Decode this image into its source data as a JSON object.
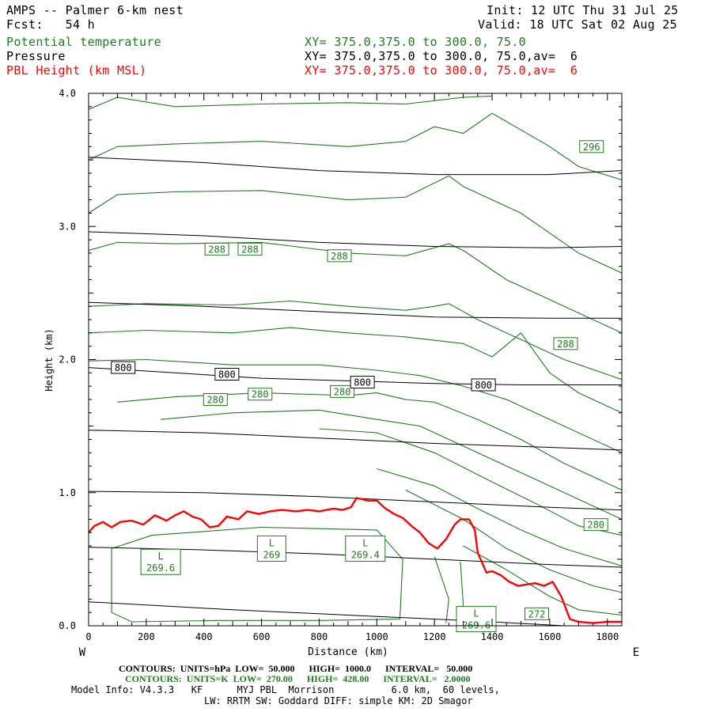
{
  "header": {
    "model": "AMPS -- Palmer 6-km nest",
    "fcst": "Fcst:   54 h",
    "init": "Init: 12 UTC Thu 31 Jul 25",
    "valid": "Valid: 18 UTC Sat 02 Aug 25",
    "var1": "Potential temperature",
    "var2": "Pressure",
    "var3": "PBL Height (km MSL)",
    "xy1": "XY= 375.0,375.0 to 300.0, 75.0",
    "xy2": "XY= 375.0,375.0 to 300.0, 75.0,av=  6",
    "xy3": "XY= 375.0,375.0 to 300.0, 75.0,av=  6"
  },
  "footer": {
    "line1": "CONTOURS:  UNITS=hPa  LOW=  50.000      HIGH=  1000.0      INTERVAL=   50.000",
    "line2": "CONTOURS:  UNITS=K  LOW=  270.00      HIGH=  428.00      INTERVAL=   2.0000",
    "line3": "Model Info: V4.3.3   KF      MYJ PBL  Morrison          6.0 km,  60 levels,",
    "line4": "LW: RRTM SW: Goddard DIFF: simple KM: 2D Smagor",
    "west": "W",
    "east": "E"
  },
  "colors": {
    "theta": "#1e7b1e",
    "pressure": "#000000",
    "pbl": "#ff0000"
  },
  "chart_data": {
    "type": "line",
    "xlabel": "Distance (km)",
    "ylabel": "Height (km)",
    "xlim": [
      0,
      1850
    ],
    "ylim": [
      0,
      4
    ],
    "x_ticks": [
      0,
      200,
      400,
      600,
      800,
      1000,
      1200,
      1400,
      1600,
      1800
    ],
    "y_ticks": [
      0.0,
      1.0,
      2.0,
      3.0,
      4.0
    ],
    "pressure_contours_hPa": [
      {
        "label": "800",
        "points": [
          [
            0,
            1.94
          ],
          [
            300,
            1.9
          ],
          [
            600,
            1.86
          ],
          [
            900,
            1.84
          ],
          [
            1200,
            1.82
          ],
          [
            1500,
            1.81
          ],
          [
            1850,
            1.81
          ]
        ]
      },
      {
        "points": [
          [
            0,
            0.18
          ],
          [
            500,
            0.12
          ],
          [
            1000,
            0.07
          ],
          [
            1400,
            0.03
          ],
          [
            1650,
            0.0
          ]
        ]
      },
      {
        "points": [
          [
            0,
            0.59
          ],
          [
            400,
            0.57
          ],
          [
            800,
            0.54
          ],
          [
            1200,
            0.5
          ],
          [
            1600,
            0.46
          ],
          [
            1850,
            0.44
          ]
        ]
      },
      {
        "points": [
          [
            0,
            1.01
          ],
          [
            400,
            1.0
          ],
          [
            800,
            0.97
          ],
          [
            1200,
            0.93
          ],
          [
            1600,
            0.89
          ],
          [
            1850,
            0.87
          ]
        ]
      },
      {
        "points": [
          [
            0,
            1.47
          ],
          [
            400,
            1.45
          ],
          [
            800,
            1.41
          ],
          [
            1200,
            1.37
          ],
          [
            1600,
            1.34
          ],
          [
            1850,
            1.32
          ]
        ]
      },
      {
        "points": [
          [
            0,
            2.43
          ],
          [
            400,
            2.4
          ],
          [
            800,
            2.36
          ],
          [
            1200,
            2.32
          ],
          [
            1600,
            2.31
          ],
          [
            1850,
            2.31
          ]
        ]
      },
      {
        "points": [
          [
            0,
            2.96
          ],
          [
            400,
            2.93
          ],
          [
            800,
            2.88
          ],
          [
            1200,
            2.85
          ],
          [
            1600,
            2.84
          ],
          [
            1850,
            2.85
          ]
        ]
      },
      {
        "points": [
          [
            0,
            3.52
          ],
          [
            400,
            3.48
          ],
          [
            800,
            3.42
          ],
          [
            1200,
            3.39
          ],
          [
            1600,
            3.39
          ],
          [
            1850,
            3.42
          ]
        ]
      }
    ],
    "pressure_labels": [
      {
        "text": "800",
        "x": 120,
        "y": 1.94
      },
      {
        "text": "800",
        "x": 480,
        "y": 1.89
      },
      {
        "text": "800",
        "x": 950,
        "y": 1.83
      },
      {
        "text": "800",
        "x": 1370,
        "y": 1.81
      }
    ],
    "theta_contours_K": [
      {
        "points": [
          [
            0,
            3.88
          ],
          [
            100,
            3.97
          ],
          [
            300,
            3.9
          ],
          [
            600,
            3.92
          ],
          [
            900,
            3.93
          ],
          [
            1100,
            3.92
          ],
          [
            1300,
            3.97
          ],
          [
            1400,
            3.98
          ]
        ]
      },
      {
        "points": [
          [
            0,
            3.5
          ],
          [
            100,
            3.6
          ],
          [
            300,
            3.62
          ],
          [
            600,
            3.64
          ],
          [
            900,
            3.6
          ],
          [
            1100,
            3.64
          ],
          [
            1200,
            3.75
          ],
          [
            1300,
            3.7
          ],
          [
            1400,
            3.85
          ],
          [
            1600,
            3.6
          ],
          [
            1700,
            3.45
          ],
          [
            1850,
            3.35
          ]
        ]
      },
      {
        "points": [
          [
            0,
            3.1
          ],
          [
            100,
            3.24
          ],
          [
            300,
            3.26
          ],
          [
            600,
            3.27
          ],
          [
            900,
            3.2
          ],
          [
            1100,
            3.22
          ],
          [
            1250,
            3.38
          ],
          [
            1300,
            3.3
          ],
          [
            1400,
            3.2
          ],
          [
            1500,
            3.1
          ],
          [
            1600,
            2.95
          ],
          [
            1700,
            2.8
          ],
          [
            1850,
            2.65
          ]
        ]
      },
      {
        "label": "288",
        "points": [
          [
            0,
            2.82
          ],
          [
            100,
            2.88
          ],
          [
            300,
            2.87
          ],
          [
            600,
            2.88
          ],
          [
            900,
            2.8
          ],
          [
            1100,
            2.78
          ],
          [
            1250,
            2.87
          ],
          [
            1300,
            2.82
          ],
          [
            1450,
            2.6
          ],
          [
            1600,
            2.45
          ],
          [
            1700,
            2.35
          ],
          [
            1850,
            2.2
          ]
        ]
      },
      {
        "points": [
          [
            0,
            2.4
          ],
          [
            200,
            2.42
          ],
          [
            500,
            2.41
          ],
          [
            700,
            2.44
          ],
          [
            900,
            2.4
          ],
          [
            1100,
            2.37
          ],
          [
            1200,
            2.4
          ],
          [
            1250,
            2.42
          ],
          [
            1350,
            2.3
          ],
          [
            1500,
            2.15
          ],
          [
            1650,
            2.0
          ],
          [
            1850,
            1.85
          ]
        ]
      },
      {
        "points": [
          [
            0,
            2.2
          ],
          [
            200,
            2.22
          ],
          [
            500,
            2.2
          ],
          [
            700,
            2.24
          ],
          [
            900,
            2.2
          ],
          [
            1100,
            2.17
          ],
          [
            1300,
            2.12
          ],
          [
            1400,
            2.02
          ],
          [
            1500,
            2.2
          ],
          [
            1600,
            1.9
          ],
          [
            1700,
            1.75
          ],
          [
            1850,
            1.6
          ]
        ]
      },
      {
        "points": [
          [
            0,
            1.99
          ],
          [
            200,
            2.0
          ],
          [
            500,
            1.96
          ],
          [
            800,
            1.96
          ],
          [
            1000,
            1.92
          ],
          [
            1150,
            1.88
          ],
          [
            1300,
            1.8
          ],
          [
            1450,
            1.7
          ],
          [
            1600,
            1.55
          ],
          [
            1850,
            1.3
          ]
        ]
      },
      {
        "label": "280",
        "points": [
          [
            100,
            1.68
          ],
          [
            300,
            1.72
          ],
          [
            600,
            1.75
          ],
          [
            900,
            1.73
          ],
          [
            1000,
            1.75
          ],
          [
            1100,
            1.7
          ],
          [
            1200,
            1.68
          ],
          [
            1350,
            1.55
          ],
          [
            1500,
            1.4
          ],
          [
            1650,
            1.22
          ],
          [
            1850,
            1.02
          ]
        ]
      },
      {
        "points": [
          [
            250,
            1.55
          ],
          [
            500,
            1.6
          ],
          [
            800,
            1.62
          ],
          [
            1000,
            1.55
          ],
          [
            1150,
            1.5
          ],
          [
            1300,
            1.35
          ],
          [
            1450,
            1.2
          ],
          [
            1600,
            1.05
          ],
          [
            1850,
            0.8
          ]
        ]
      },
      {
        "points": [
          [
            800,
            1.48
          ],
          [
            1000,
            1.45
          ],
          [
            1200,
            1.3
          ],
          [
            1400,
            1.08
          ],
          [
            1550,
            0.92
          ],
          [
            1700,
            0.75
          ],
          [
            1850,
            0.68
          ]
        ]
      },
      {
        "points": [
          [
            1000,
            1.18
          ],
          [
            1200,
            1.05
          ],
          [
            1350,
            0.88
          ],
          [
            1500,
            0.72
          ],
          [
            1650,
            0.58
          ],
          [
            1850,
            0.45
          ]
        ]
      },
      {
        "points": [
          [
            1100,
            1.02
          ],
          [
            1300,
            0.8
          ],
          [
            1450,
            0.58
          ],
          [
            1600,
            0.42
          ],
          [
            1750,
            0.3
          ],
          [
            1850,
            0.25
          ]
        ]
      },
      {
        "label": "272",
        "points": [
          [
            1300,
            0.6
          ],
          [
            1450,
            0.42
          ],
          [
            1600,
            0.22
          ],
          [
            1700,
            0.12
          ],
          [
            1850,
            0.08
          ]
        ]
      },
      {
        "points": [
          [
            80,
            0.58
          ],
          [
            220,
            0.68
          ],
          [
            600,
            0.74
          ],
          [
            1000,
            0.72
          ],
          [
            1090,
            0.5
          ],
          [
            1080,
            0.05
          ],
          [
            800,
            0.04
          ],
          [
            450,
            0.04
          ],
          [
            150,
            0.03
          ],
          [
            80,
            0.1
          ],
          [
            80,
            0.58
          ]
        ]
      },
      {
        "points": [
          [
            1200,
            0.52
          ],
          [
            1250,
            0.2
          ],
          [
            1240,
            0.02
          ]
        ]
      },
      {
        "points": [
          [
            1290,
            0.48
          ],
          [
            1300,
            0.15
          ],
          [
            1290,
            0.02
          ]
        ]
      }
    ],
    "theta_labels": [
      {
        "text": "296",
        "x": 1745,
        "y": 3.6
      },
      {
        "text": "288",
        "x": 445,
        "y": 2.83
      },
      {
        "text": "288",
        "x": 560,
        "y": 2.83
      },
      {
        "text": "288",
        "x": 870,
        "y": 2.78
      },
      {
        "text": "288",
        "x": 1655,
        "y": 2.12
      },
      {
        "text": "280",
        "x": 440,
        "y": 1.7
      },
      {
        "text": "280",
        "x": 595,
        "y": 1.74
      },
      {
        "text": "280",
        "x": 880,
        "y": 1.76
      },
      {
        "text": "280",
        "x": 1760,
        "y": 0.76
      },
      {
        "text": "272",
        "x": 1555,
        "y": 0.09
      }
    ],
    "lows": [
      {
        "text": "L",
        "value": "269.6",
        "x": 250,
        "y": 0.48
      },
      {
        "text": "L",
        "value": "269",
        "x": 635,
        "y": 0.58
      },
      {
        "text": "L",
        "value": "269.4",
        "x": 960,
        "y": 0.58
      },
      {
        "text": "L",
        "value": "269.6",
        "x": 1345,
        "y": 0.05
      }
    ],
    "pbl_height_km": [
      [
        0,
        0.7
      ],
      [
        20,
        0.75
      ],
      [
        50,
        0.78
      ],
      [
        80,
        0.74
      ],
      [
        110,
        0.78
      ],
      [
        150,
        0.79
      ],
      [
        190,
        0.76
      ],
      [
        230,
        0.83
      ],
      [
        270,
        0.79
      ],
      [
        300,
        0.83
      ],
      [
        330,
        0.86
      ],
      [
        360,
        0.82
      ],
      [
        390,
        0.8
      ],
      [
        420,
        0.74
      ],
      [
        450,
        0.75
      ],
      [
        480,
        0.82
      ],
      [
        520,
        0.8
      ],
      [
        550,
        0.86
      ],
      [
        590,
        0.84
      ],
      [
        630,
        0.86
      ],
      [
        670,
        0.87
      ],
      [
        720,
        0.86
      ],
      [
        760,
        0.87
      ],
      [
        800,
        0.86
      ],
      [
        850,
        0.88
      ],
      [
        880,
        0.87
      ],
      [
        910,
        0.89
      ],
      [
        930,
        0.96
      ],
      [
        970,
        0.94
      ],
      [
        1000,
        0.94
      ],
      [
        1030,
        0.88
      ],
      [
        1060,
        0.84
      ],
      [
        1090,
        0.81
      ],
      [
        1120,
        0.75
      ],
      [
        1150,
        0.7
      ],
      [
        1180,
        0.62
      ],
      [
        1210,
        0.58
      ],
      [
        1240,
        0.65
      ],
      [
        1270,
        0.76
      ],
      [
        1290,
        0.8
      ],
      [
        1320,
        0.8
      ],
      [
        1340,
        0.72
      ],
      [
        1350,
        0.55
      ],
      [
        1380,
        0.4
      ],
      [
        1400,
        0.41
      ],
      [
        1430,
        0.38
      ],
      [
        1460,
        0.33
      ],
      [
        1490,
        0.3
      ],
      [
        1520,
        0.31
      ],
      [
        1550,
        0.32
      ],
      [
        1580,
        0.3
      ],
      [
        1610,
        0.33
      ],
      [
        1640,
        0.22
      ],
      [
        1670,
        0.05
      ],
      [
        1700,
        0.03
      ],
      [
        1750,
        0.02
      ],
      [
        1800,
        0.03
      ],
      [
        1850,
        0.03
      ]
    ]
  }
}
